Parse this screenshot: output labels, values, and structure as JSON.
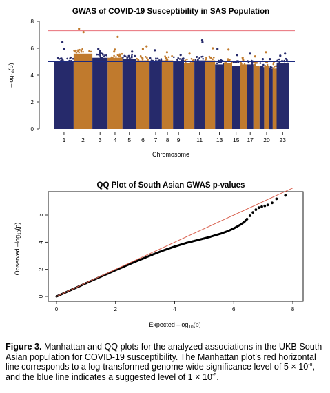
{
  "colors": {
    "odd_chromosome": "#262a6b",
    "even_chromosome": "#c07a2d",
    "genome_wide_line": "#e8707a",
    "suggestive_line": "#1c2a80",
    "qq_points": "#000000",
    "qq_reference_line": "#d9604e"
  },
  "manhattan": {
    "title": "GWAS of COVID-19 Susceptibility in SAS Population",
    "ylabel_prefix": "–log",
    "ylabel_sub": "10",
    "ylabel_suffix": "(p)",
    "xlabel": "Chromosome"
  },
  "qq": {
    "title": "QQ Plot of South Asian GWAS p-values",
    "ylabel_prefix": "Observed  –log",
    "ylabel_sub": "10",
    "ylabel_suffix": "(p)",
    "xlabel_prefix": "Expected  –log",
    "xlabel_sub": "10",
    "xlabel_suffix": "(p)"
  },
  "caption": {
    "label": "Figure 3.",
    "line1": " Manhattan and QQ plots for the analyzed associations in the UKB South Asian population for COVID-19 susceptibility. The Manhattan plot’s red horizontal line corresponds to a log-transformed genome-wide significance level of 5 × 10",
    "exp1": "-8",
    "line2": ", and the blue line indicates a suggested level of 1 × 10",
    "exp2": "-5",
    "line3": "."
  },
  "chart_data": [
    {
      "type": "scatter",
      "subtype": "manhattan",
      "title": "GWAS of COVID-19 Susceptibility in SAS Population",
      "xlabel": "Chromosome",
      "ylabel": "–log10(p)",
      "ylim": [
        0,
        8
      ],
      "yticks": [
        0,
        2,
        4,
        6,
        8
      ],
      "xtick_labels": [
        "1",
        "2",
        "3",
        "4",
        "5",
        "6",
        "7",
        "8",
        "9",
        "11",
        "13",
        "15",
        "17",
        "20",
        "23"
      ],
      "chromosomes": [
        "1",
        "2",
        "3",
        "4",
        "5",
        "6",
        "7",
        "8",
        "9",
        "10",
        "11",
        "12",
        "13",
        "14",
        "15",
        "16",
        "17",
        "18",
        "19",
        "20",
        "21",
        "22",
        "23"
      ],
      "column_top": [
        5.0,
        5.6,
        5.3,
        5.3,
        5.2,
        5.1,
        5.0,
        5.1,
        5.0,
        4.9,
        5.1,
        5.1,
        4.8,
        4.9,
        4.7,
        4.8,
        4.8,
        4.7,
        4.6,
        4.7,
        4.5,
        4.5,
        4.9
      ],
      "genome_wide_line": 7.3,
      "suggestive_line": 5.0,
      "top_hits": [
        {
          "chr": "1",
          "value": 6.45
        },
        {
          "chr": "1",
          "value": 5.95
        },
        {
          "chr": "2",
          "value": 7.45
        },
        {
          "chr": "2",
          "value": 7.2
        },
        {
          "chr": "3",
          "value": 5.95
        },
        {
          "chr": "3",
          "value": 5.8
        },
        {
          "chr": "4",
          "value": 6.85
        },
        {
          "chr": "4",
          "value": 5.9
        },
        {
          "chr": "4",
          "value": 5.75
        },
        {
          "chr": "5",
          "value": 5.75
        },
        {
          "chr": "6",
          "value": 6.15
        },
        {
          "chr": "6",
          "value": 5.95
        },
        {
          "chr": "7",
          "value": 5.85
        },
        {
          "chr": "8",
          "value": 5.7
        },
        {
          "chr": "9",
          "value": 5.5
        },
        {
          "chr": "10",
          "value": 5.6
        },
        {
          "chr": "11",
          "value": 6.6
        },
        {
          "chr": "11",
          "value": 6.45
        },
        {
          "chr": "12",
          "value": 6.0
        },
        {
          "chr": "13",
          "value": 5.95
        },
        {
          "chr": "14",
          "value": 5.9
        },
        {
          "chr": "15",
          "value": 5.5
        },
        {
          "chr": "16",
          "value": 5.3
        },
        {
          "chr": "17",
          "value": 5.6
        },
        {
          "chr": "18",
          "value": 5.4
        },
        {
          "chr": "19",
          "value": 5.2
        },
        {
          "chr": "20",
          "value": 5.7
        },
        {
          "chr": "21",
          "value": 5.2
        },
        {
          "chr": "22",
          "value": 5.0
        },
        {
          "chr": "23",
          "value": 5.6
        },
        {
          "chr": "23",
          "value": 5.45
        }
      ],
      "grid": false
    },
    {
      "type": "scatter",
      "subtype": "qq",
      "title": "QQ Plot of South Asian GWAS p-values",
      "xlabel": "Expected –log10(p)",
      "ylabel": "Observed –log10(p)",
      "xlim": [
        0,
        8
      ],
      "ylim": [
        0,
        7.6
      ],
      "xticks": [
        0,
        2,
        4,
        6,
        8
      ],
      "yticks": [
        0,
        2,
        4,
        6
      ],
      "reference_line": {
        "x": [
          0,
          8
        ],
        "y": [
          0,
          8
        ]
      },
      "x": [
        0.0,
        0.25,
        0.5,
        0.75,
        1.0,
        1.25,
        1.5,
        1.75,
        2.0,
        2.25,
        2.5,
        2.75,
        3.0,
        3.25,
        3.5,
        3.75,
        4.0,
        4.2,
        4.4,
        4.6,
        4.8,
        5.0,
        5.2,
        5.4,
        5.6,
        5.8,
        6.0,
        6.2,
        6.35,
        6.45,
        6.55,
        6.65,
        6.75,
        6.85,
        6.95,
        7.05,
        7.15,
        7.3,
        7.45,
        7.75
      ],
      "y": [
        0.0,
        0.24,
        0.49,
        0.73,
        0.98,
        1.22,
        1.46,
        1.7,
        1.94,
        2.17,
        2.41,
        2.64,
        2.86,
        3.08,
        3.3,
        3.5,
        3.68,
        3.82,
        3.95,
        4.06,
        4.17,
        4.28,
        4.4,
        4.53,
        4.66,
        4.82,
        5.02,
        5.26,
        5.48,
        5.7,
        5.95,
        6.2,
        6.4,
        6.55,
        6.62,
        6.68,
        6.75,
        6.9,
        7.2,
        7.45
      ],
      "grid": false
    }
  ]
}
